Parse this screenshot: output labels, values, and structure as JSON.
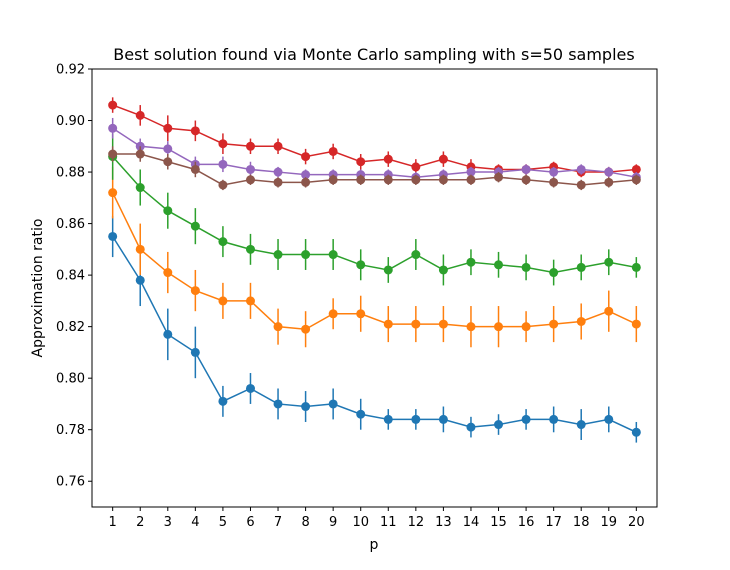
{
  "chart_data": {
    "type": "line",
    "title": "Best solution found via Monte Carlo sampling with s=50 samples",
    "xlabel": "p",
    "ylabel": "Approximation ratio",
    "x": [
      1,
      2,
      3,
      4,
      5,
      6,
      7,
      8,
      9,
      10,
      11,
      12,
      13,
      14,
      15,
      16,
      17,
      18,
      19,
      20
    ],
    "xlim": [
      0.25,
      20.75
    ],
    "ylim": [
      0.75,
      0.92
    ],
    "yticks": [
      "0.76",
      "0.78",
      "0.80",
      "0.82",
      "0.84",
      "0.86",
      "0.88",
      "0.90",
      "0.92"
    ],
    "grid": false,
    "error_bars": true,
    "series": [
      {
        "color": "#1f77b4",
        "values": [
          0.855,
          0.838,
          0.817,
          0.81,
          0.791,
          0.796,
          0.79,
          0.789,
          0.79,
          0.786,
          0.784,
          0.784,
          0.784,
          0.781,
          0.782,
          0.784,
          0.784,
          0.782,
          0.784,
          0.779
        ],
        "errors": [
          0.008,
          0.01,
          0.01,
          0.01,
          0.006,
          0.006,
          0.006,
          0.006,
          0.006,
          0.006,
          0.004,
          0.004,
          0.005,
          0.004,
          0.004,
          0.004,
          0.005,
          0.006,
          0.005,
          0.004
        ]
      },
      {
        "color": "#ff7f0e",
        "values": [
          0.872,
          0.85,
          0.841,
          0.834,
          0.83,
          0.83,
          0.82,
          0.819,
          0.825,
          0.825,
          0.821,
          0.821,
          0.821,
          0.82,
          0.82,
          0.82,
          0.821,
          0.822,
          0.826,
          0.821
        ],
        "errors": [
          0.01,
          0.01,
          0.008,
          0.008,
          0.007,
          0.007,
          0.007,
          0.007,
          0.006,
          0.007,
          0.007,
          0.007,
          0.007,
          0.008,
          0.008,
          0.006,
          0.007,
          0.007,
          0.008,
          0.007
        ]
      },
      {
        "color": "#2ca02c",
        "values": [
          0.886,
          0.874,
          0.865,
          0.859,
          0.853,
          0.85,
          0.848,
          0.848,
          0.848,
          0.844,
          0.842,
          0.848,
          0.842,
          0.845,
          0.844,
          0.843,
          0.841,
          0.843,
          0.845,
          0.843
        ],
        "errors": [
          0.009,
          0.007,
          0.007,
          0.007,
          0.006,
          0.006,
          0.006,
          0.006,
          0.006,
          0.006,
          0.005,
          0.006,
          0.006,
          0.005,
          0.005,
          0.005,
          0.005,
          0.005,
          0.005,
          0.004
        ]
      },
      {
        "color": "#d62728",
        "values": [
          0.906,
          0.902,
          0.897,
          0.896,
          0.891,
          0.89,
          0.89,
          0.886,
          0.888,
          0.884,
          0.885,
          0.882,
          0.885,
          0.882,
          0.881,
          0.881,
          0.882,
          0.88,
          0.88,
          0.881
        ],
        "errors": [
          0.003,
          0.004,
          0.005,
          0.004,
          0.004,
          0.003,
          0.003,
          0.003,
          0.003,
          0.003,
          0.003,
          0.003,
          0.003,
          0.003,
          0.002,
          0.002,
          0.002,
          0.002,
          0.002,
          0.002
        ]
      },
      {
        "color": "#9467bd",
        "values": [
          0.897,
          0.89,
          0.889,
          0.883,
          0.883,
          0.881,
          0.88,
          0.879,
          0.879,
          0.879,
          0.879,
          0.878,
          0.879,
          0.88,
          0.88,
          0.881,
          0.88,
          0.881,
          0.88,
          0.878
        ],
        "errors": [
          0.004,
          0.003,
          0.003,
          0.003,
          0.003,
          0.003,
          0.002,
          0.002,
          0.002,
          0.002,
          0.002,
          0.002,
          0.002,
          0.002,
          0.002,
          0.002,
          0.002,
          0.002,
          0.002,
          0.002
        ]
      },
      {
        "color": "#8c564b",
        "values": [
          0.887,
          0.887,
          0.884,
          0.881,
          0.875,
          0.877,
          0.876,
          0.876,
          0.877,
          0.877,
          0.877,
          0.877,
          0.877,
          0.877,
          0.878,
          0.877,
          0.876,
          0.875,
          0.876,
          0.877
        ],
        "errors": [
          0.003,
          0.003,
          0.003,
          0.003,
          0.002,
          0.002,
          0.002,
          0.002,
          0.002,
          0.002,
          0.002,
          0.002,
          0.002,
          0.002,
          0.002,
          0.002,
          0.002,
          0.002,
          0.002,
          0.002
        ]
      }
    ]
  }
}
